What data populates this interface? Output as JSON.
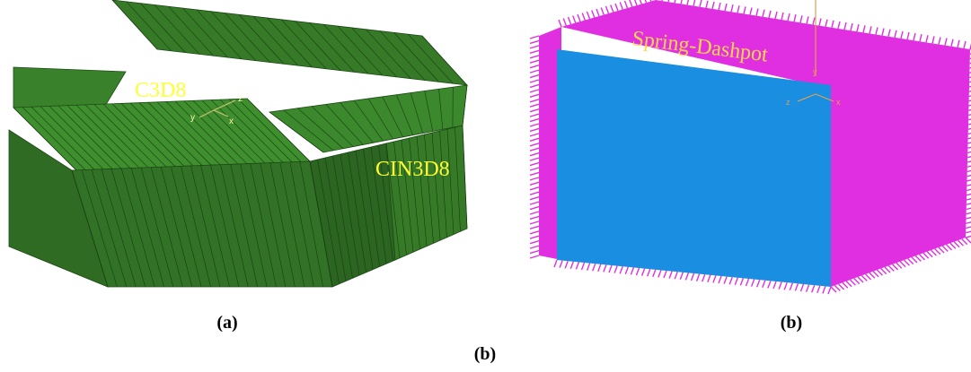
{
  "panels": [
    {
      "id": "a",
      "caption": "(a)",
      "mesh_color": "#3f8f2f",
      "labels": {
        "inner": "C3D8",
        "outer": "CIN3D8"
      },
      "label_color": "#ffff33",
      "axes": {
        "x": "x",
        "y": "y",
        "z": "z"
      }
    },
    {
      "id": "b",
      "caption": "(b)",
      "face_color": "#1a8ee0",
      "boundary_color": "#e02fe0",
      "labels": {
        "boundary": "Spring-Dashpot"
      },
      "label_color": "#ffd84a",
      "axes": {
        "x": "x",
        "y": "y",
        "z": "z"
      }
    }
  ],
  "figure_caption": "(b)"
}
